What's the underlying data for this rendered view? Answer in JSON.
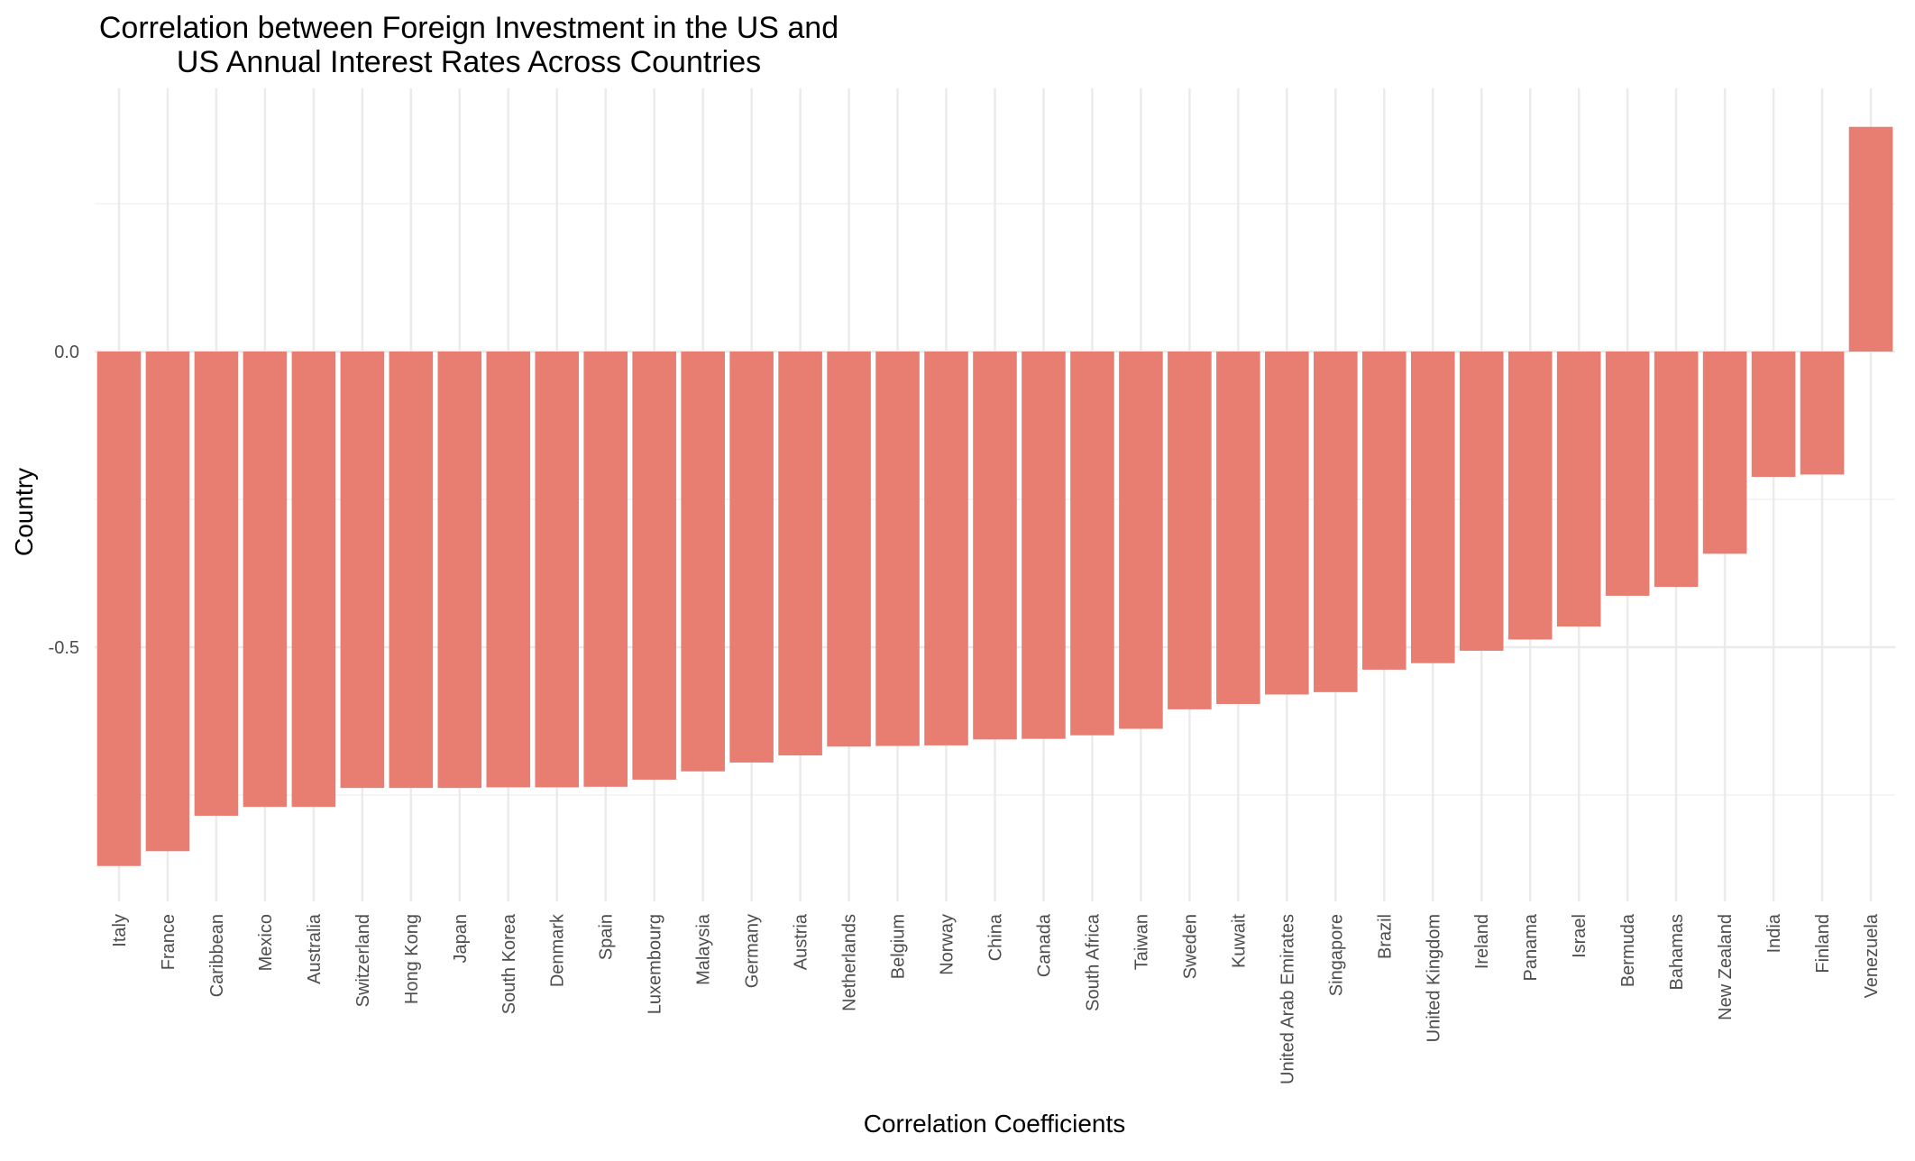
{
  "chart_data": {
    "type": "bar",
    "title_lines": [
      "Correlation between Foreign Investment in the US and",
      "US Annual Interest Rates Across Countries"
    ],
    "xlabel": "Correlation Coefficients",
    "ylabel": "Country",
    "categories": [
      "Italy",
      "France",
      "Caribbean",
      "Mexico",
      "Australia",
      "Switzerland",
      "Hong Kong",
      "Japan",
      "South Korea",
      "Denmark",
      "Spain",
      "Luxembourg",
      "Malaysia",
      "Germany",
      "Austria",
      "Netherlands",
      "Belgium",
      "Norway",
      "China",
      "Canada",
      "South Africa",
      "Taiwan",
      "Sweden",
      "Kuwait",
      "United Arab Emirates",
      "Singapore",
      "Brazil",
      "United Kingdom",
      "Ireland",
      "Panama",
      "Israel",
      "Bermuda",
      "Bahamas",
      "New Zealand",
      "India",
      "Finland",
      "Venezuela"
    ],
    "values": [
      -0.87,
      -0.845,
      -0.785,
      -0.77,
      -0.77,
      -0.738,
      -0.738,
      -0.738,
      -0.737,
      -0.737,
      -0.736,
      -0.724,
      -0.71,
      -0.695,
      -0.683,
      -0.668,
      -0.667,
      -0.666,
      -0.656,
      -0.655,
      -0.649,
      -0.638,
      -0.605,
      -0.596,
      -0.58,
      -0.576,
      -0.538,
      -0.527,
      -0.506,
      -0.487,
      -0.465,
      -0.413,
      -0.398,
      -0.342,
      -0.212,
      -0.208,
      0.38
    ],
    "yticks": [
      0.0,
      -0.5
    ],
    "ytick_labels": [
      "0.0",
      "-0.5"
    ],
    "ylim": [
      -0.93,
      0.44
    ],
    "grid": true,
    "legend": "none",
    "bar_color": "#E87D72"
  }
}
